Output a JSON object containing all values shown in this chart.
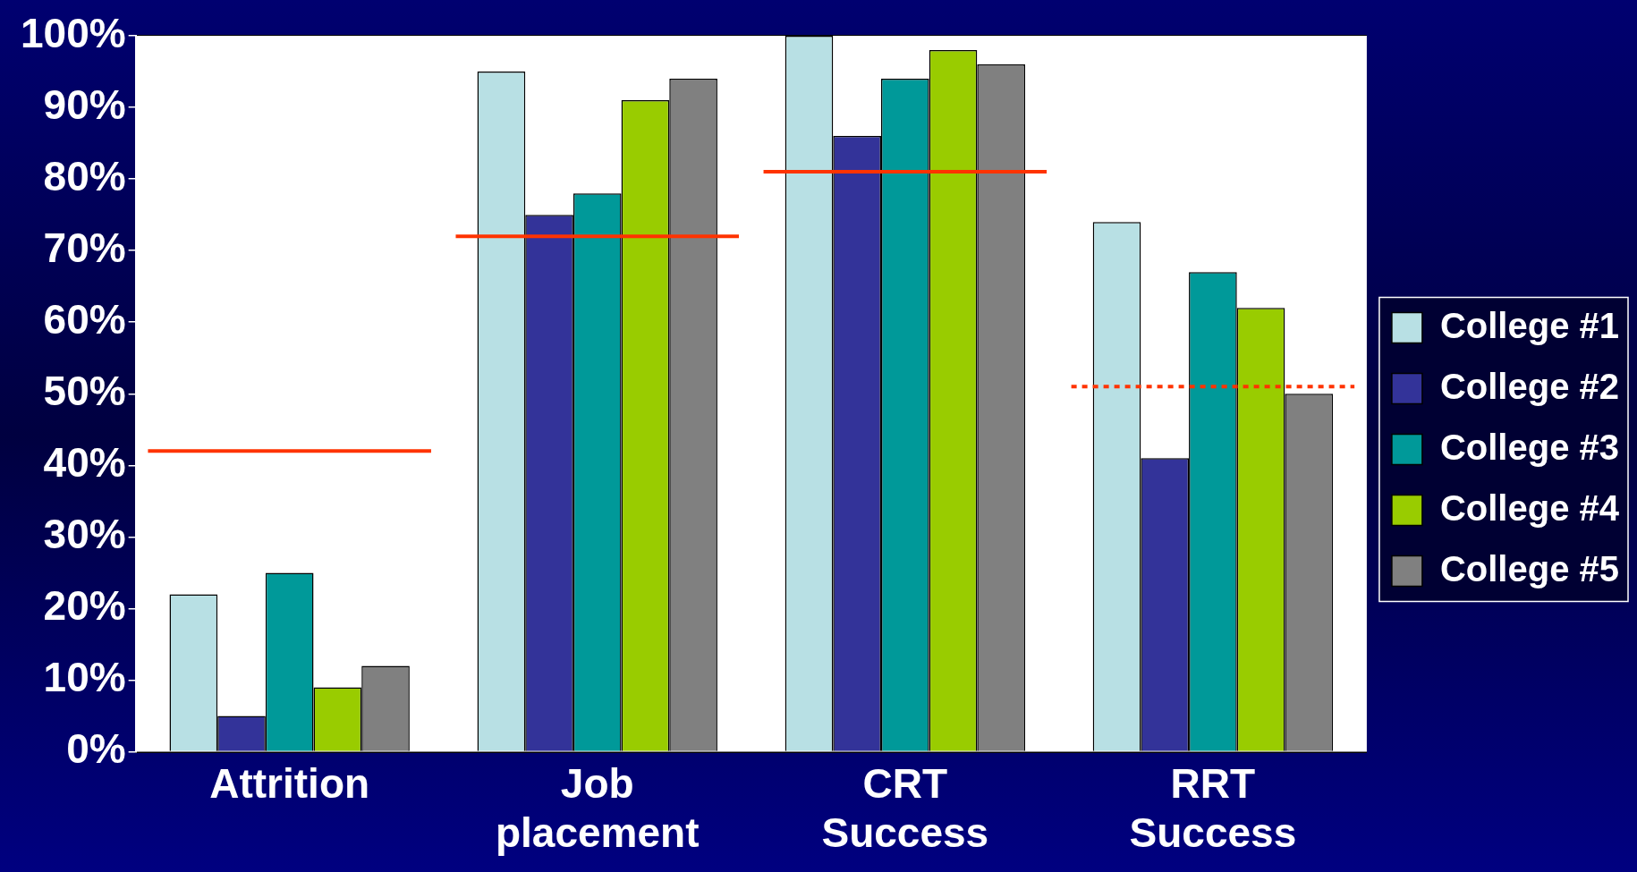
{
  "chart_data": {
    "type": "bar",
    "categories": [
      "Attrition",
      "Job placement",
      "CRT Success",
      "RRT Success"
    ],
    "series": [
      {
        "name": "College #1",
        "color": "#b8e0e4",
        "values": [
          22,
          95,
          100,
          74
        ]
      },
      {
        "name": "College #2",
        "color": "#333399",
        "values": [
          5,
          75,
          86,
          41
        ]
      },
      {
        "name": "College #3",
        "color": "#009999",
        "values": [
          25,
          78,
          94,
          67
        ]
      },
      {
        "name": "College #4",
        "color": "#99cc00",
        "values": [
          9,
          91,
          98,
          62
        ]
      },
      {
        "name": "College #5",
        "color": "#808080",
        "values": [
          12,
          94,
          96,
          50
        ]
      }
    ],
    "ref_lines": [
      {
        "axis": "y",
        "value": 42,
        "color": "#ff3300",
        "line_style": "solid"
      },
      {
        "axis": "y",
        "value": 72,
        "color": "#ff3300",
        "line_style": "solid"
      },
      {
        "axis": "y",
        "value": 81,
        "color": "#ff3300",
        "line_style": "solid"
      },
      {
        "axis": "y",
        "value": 51,
        "color": "#ff3300",
        "line_style": "dotted"
      }
    ],
    "ylim": [
      0,
      100
    ],
    "yticks": [
      {
        "value": 0,
        "label": "0%"
      },
      {
        "value": 10,
        "label": "10%"
      },
      {
        "value": 20,
        "label": "20%"
      },
      {
        "value": 30,
        "label": "30%"
      },
      {
        "value": 40,
        "label": "40%"
      },
      {
        "value": 50,
        "label": "50%"
      },
      {
        "value": 60,
        "label": "60%"
      },
      {
        "value": 70,
        "label": "70%"
      },
      {
        "value": 80,
        "label": "80%"
      },
      {
        "value": 90,
        "label": "90%"
      },
      {
        "value": 100,
        "label": "100%"
      }
    ],
    "grid": "y",
    "legend": "right"
  }
}
